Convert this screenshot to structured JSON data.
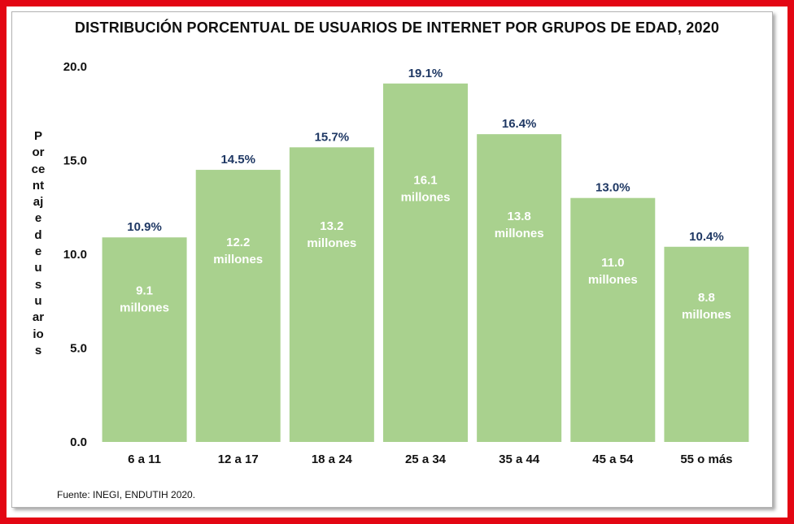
{
  "chart_data": {
    "type": "bar",
    "title": "DISTRIBUCIÓN PORCENTUAL DE USUARIOS DE INTERNET POR GRUPOS DE EDAD, 2020",
    "ylabel": "Porcentaje de usuarios",
    "ylabel_lines": [
      "P",
      "or",
      "ce",
      "nt",
      "aj",
      "e",
      "d",
      "e",
      "u",
      "s",
      "u",
      "ar",
      "io",
      "s"
    ],
    "xlabel": "",
    "ylim": [
      0,
      20
    ],
    "yticks": [
      "0.0",
      "5.0",
      "10.0",
      "15.0",
      "20.0"
    ],
    "categories": [
      "6 a 11",
      "12 a 17",
      "18 a 24",
      "25 a 34",
      "35 a 44",
      "45 a 54",
      "55 o más"
    ],
    "values": [
      10.9,
      14.5,
      15.7,
      19.1,
      16.4,
      13.0,
      10.4
    ],
    "value_labels": [
      "10.9%",
      "14.5%",
      "15.7%",
      "19.1%",
      "16.4%",
      "13.0%",
      "10.4%"
    ],
    "millions_values": [
      "9.1",
      "12.2",
      "13.2",
      "16.1",
      "13.8",
      "11.0",
      "8.8"
    ],
    "millions_unit": "millones",
    "bar_color": "#a9d18e",
    "value_label_color": "#1f3864",
    "grid": false
  },
  "source_text": "Fuente: INEGI, ENDUTIH 2020.",
  "colors": {
    "frame": "#e30613"
  }
}
